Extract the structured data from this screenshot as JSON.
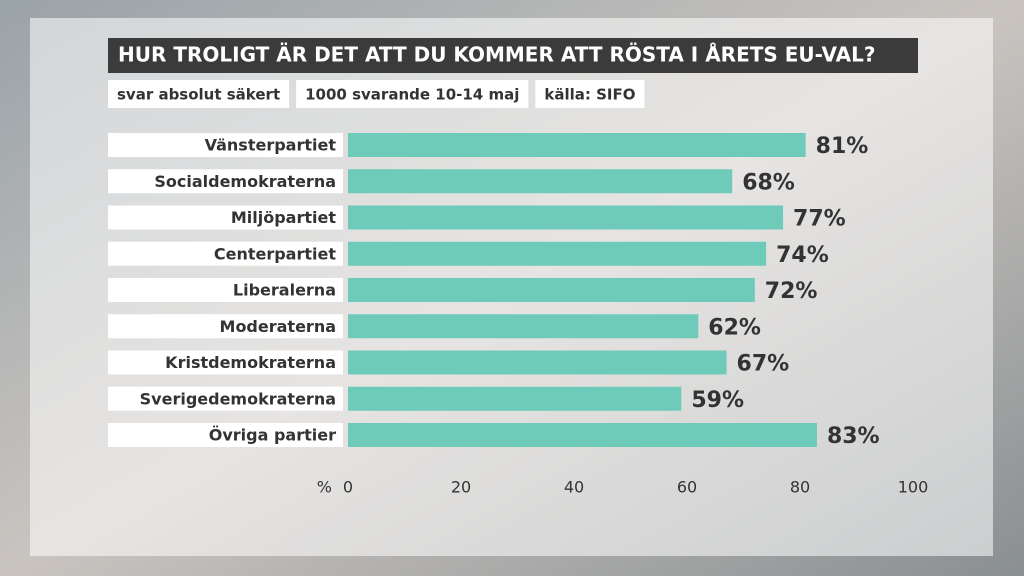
{
  "chart_data": {
    "type": "barh",
    "title": "HUR TROLIGT ÄR DET ATT DU KOMMER ATT RÖSTA I ÅRETS EU-VAL?",
    "subtitles": [
      "svar absolut säkert",
      "1000 svarande 10-14 maj",
      "källa: SIFO"
    ],
    "categories": [
      "Vänsterpartiet",
      "Socialdemokraterna",
      "Miljöpartiet",
      "Centerpartiet",
      "Liberalerna",
      "Moderaterna",
      "Kristdemokraterna",
      "Sverigedemokraterna",
      "Övriga partier"
    ],
    "values": [
      81,
      68,
      77,
      74,
      72,
      62,
      67,
      59,
      83
    ],
    "value_labels": [
      "81%",
      "68%",
      "77%",
      "74%",
      "72%",
      "62%",
      "67%",
      "59%",
      "83%"
    ],
    "color": "#6ecbb9",
    "x_unit": "%",
    "xlim": [
      0,
      100
    ],
    "xticks": [
      0,
      20,
      40,
      60,
      80,
      100
    ]
  }
}
